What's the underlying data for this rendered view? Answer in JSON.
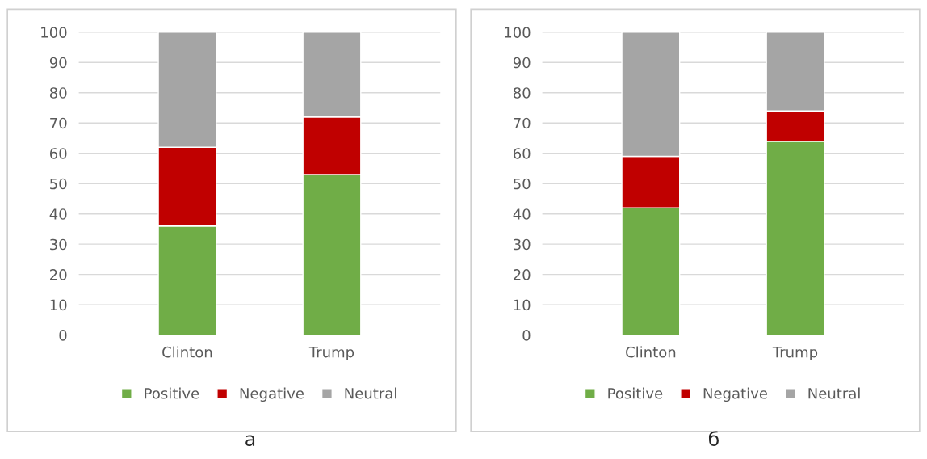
{
  "chart_data": [
    {
      "type": "bar",
      "stacked": true,
      "xlabel": "а",
      "categories": [
        "Clinton",
        "Trump"
      ],
      "ylim": [
        0,
        100
      ],
      "yticks": [
        0,
        10,
        20,
        30,
        40,
        50,
        60,
        70,
        80,
        90,
        100
      ],
      "grid": "y",
      "legend": "bottom",
      "series": [
        {
          "name": "Positive",
          "color": "#70ad47",
          "values": [
            36,
            53
          ]
        },
        {
          "name": "Negative",
          "color": "#c00000",
          "values": [
            26,
            19
          ]
        },
        {
          "name": "Neutral",
          "color": "#a5a5a5",
          "values": [
            38,
            28
          ]
        }
      ]
    },
    {
      "type": "bar",
      "stacked": true,
      "xlabel": "б",
      "categories": [
        "Clinton",
        "Trump"
      ],
      "ylim": [
        0,
        100
      ],
      "yticks": [
        0,
        10,
        20,
        30,
        40,
        50,
        60,
        70,
        80,
        90,
        100
      ],
      "grid": "y",
      "legend": "bottom",
      "series": [
        {
          "name": "Positive",
          "color": "#70ad47",
          "values": [
            42,
            64
          ]
        },
        {
          "name": "Negative",
          "color": "#c00000",
          "values": [
            17,
            10
          ]
        },
        {
          "name": "Neutral",
          "color": "#a5a5a5",
          "values": [
            41,
            26
          ]
        }
      ]
    }
  ]
}
